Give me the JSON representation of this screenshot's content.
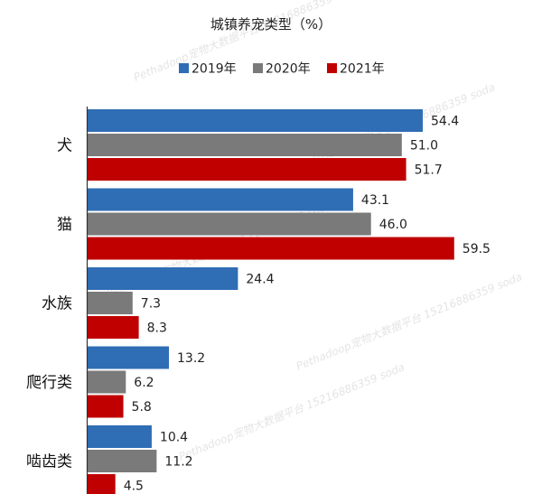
{
  "chart_data": {
    "type": "bar",
    "orientation": "horizontal",
    "title": "城镇养宠类型（%）",
    "xlabel": "",
    "ylabel": "",
    "xlim": [
      0,
      62
    ],
    "grid": false,
    "legend_position": "top",
    "categories": [
      "犬",
      "猫",
      "水族",
      "爬行类",
      "啮齿类"
    ],
    "series": [
      {
        "name": "2019年",
        "color": "#2f6db5",
        "values": [
          54.4,
          43.1,
          24.4,
          13.2,
          10.4
        ]
      },
      {
        "name": "2020年",
        "color": "#7a7a7a",
        "values": [
          51.0,
          46.0,
          7.3,
          6.2,
          11.2
        ]
      },
      {
        "name": "2021年",
        "color": "#c00000",
        "values": [
          51.7,
          59.5,
          8.3,
          5.8,
          4.5
        ]
      }
    ],
    "value_labels": [
      [
        "54.4",
        "51.0",
        "51.7"
      ],
      [
        "43.1",
        "46.0",
        "59.5"
      ],
      [
        "24.4",
        "7.3",
        "8.3"
      ],
      [
        "13.2",
        "6.2",
        "5.8"
      ],
      [
        "10.4",
        "11.2",
        "4.5"
      ]
    ]
  },
  "watermarks": [
    "Pethadoop宠物大数据平台 15216886359 soda",
    "Pethadoop宠物大数据平台 15216886359 soda",
    "Pethadoop宠物大数据平台 15216886359 soda",
    "Pethadoop宠物大数据平台 15216886359 soda",
    "Pethadoop宠物大数据平台 15216886359 soda"
  ]
}
